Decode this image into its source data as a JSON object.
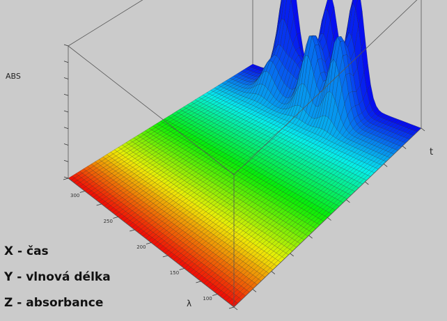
{
  "legend": {
    "x": "X - čas",
    "y": "Y - vlnová délka",
    "z": "Z - absorbance"
  },
  "chart_data": {
    "type": "surface",
    "zlabel": "ABS",
    "tlabel": "t",
    "lambdalabel": "λ",
    "y_tick_labels": [
      "300",
      "250",
      "200",
      "150",
      "100"
    ],
    "grid": true,
    "colormap": "wavelength: red (front edge) through orange, yellow, green, cyan to blue (back edge)",
    "time_range": [
      0,
      1
    ],
    "wavelength_range": [
      0,
      1
    ],
    "absorbance_range": [
      0,
      1
    ],
    "peaks": [
      {
        "t": 0.22,
        "lambda": 0.0,
        "abs": 0.85
      },
      {
        "t": 0.22,
        "lambda": 0.1,
        "abs": 0.22
      },
      {
        "t": 0.46,
        "lambda": 0.0,
        "abs": 0.74
      },
      {
        "t": 0.46,
        "lambda": 0.1,
        "abs": 0.55
      },
      {
        "t": 0.62,
        "lambda": 0.0,
        "abs": 0.88
      },
      {
        "t": 0.62,
        "lambda": 0.1,
        "abs": 0.62
      },
      {
        "t": 0.32,
        "lambda": 0.05,
        "abs": 0.22
      }
    ]
  }
}
